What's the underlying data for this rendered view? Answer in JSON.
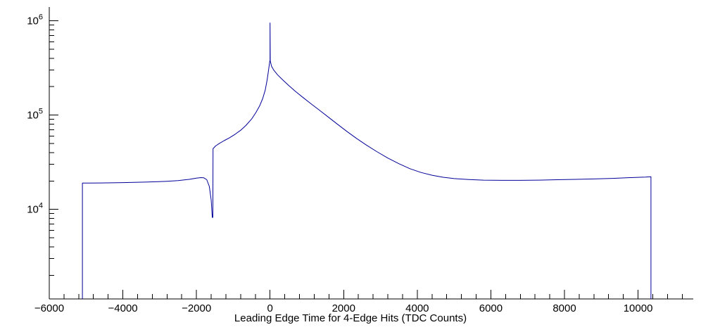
{
  "page": {
    "background": "#ffffff"
  },
  "chart_data": {
    "type": "line",
    "title": "",
    "xlabel": "Leading Edge Time for 4-Edge Hits (TDC Counts)",
    "ylabel": "",
    "x_range": [
      -6000,
      11500
    ],
    "y_range": [
      1120,
      1400000
    ],
    "y_scale": "log",
    "grid": false,
    "legend": "none",
    "line_color": "#000099",
    "axis_color": "#000000",
    "x_ticks": [
      {
        "value": -6000,
        "label": "−6000"
      },
      {
        "value": -4000,
        "label": "−4000"
      },
      {
        "value": -2000,
        "label": "−2000"
      },
      {
        "value": 0,
        "label": "0"
      },
      {
        "value": 2000,
        "label": "2000"
      },
      {
        "value": 4000,
        "label": "4000"
      },
      {
        "value": 6000,
        "label": "6000"
      },
      {
        "value": 8000,
        "label": "8000"
      },
      {
        "value": 10000,
        "label": "10000"
      }
    ],
    "x_minor_step": 400,
    "y_ticks": [
      {
        "value": 10000,
        "base": "10",
        "exp": "4"
      },
      {
        "value": 100000,
        "base": "10",
        "exp": "5"
      },
      {
        "value": 1000000,
        "base": "10",
        "exp": "6"
      }
    ],
    "features": {
      "baseline_level": 20000,
      "left_edge_x": -5100,
      "right_edge_x": 10350,
      "dip_x": -1560,
      "dip_y": 8200,
      "peak_x": 0,
      "peak_y": 380000,
      "spike_top_y": 950000
    },
    "points": [
      [
        -5100,
        1120
      ],
      [
        -5100,
        19000
      ],
      [
        -4900,
        19000
      ],
      [
        -4600,
        19050
      ],
      [
        -4300,
        19100
      ],
      [
        -4000,
        19200
      ],
      [
        -3700,
        19300
      ],
      [
        -3400,
        19450
      ],
      [
        -3100,
        19600
      ],
      [
        -2800,
        19850
      ],
      [
        -2500,
        20200
      ],
      [
        -2200,
        20800
      ],
      [
        -2000,
        21400
      ],
      [
        -1880,
        21700
      ],
      [
        -1800,
        21600
      ],
      [
        -1720,
        20600
      ],
      [
        -1650,
        17500
      ],
      [
        -1600,
        12500
      ],
      [
        -1570,
        8200
      ],
      [
        -1555,
        8200
      ],
      [
        -1550,
        44000
      ],
      [
        -1480,
        47000
      ],
      [
        -1380,
        50000
      ],
      [
        -1250,
        53500
      ],
      [
        -1100,
        57500
      ],
      [
        -950,
        62500
      ],
      [
        -800,
        69000
      ],
      [
        -650,
        78000
      ],
      [
        -500,
        91000
      ],
      [
        -380,
        107000
      ],
      [
        -280,
        126000
      ],
      [
        -200,
        150000
      ],
      [
        -130,
        185000
      ],
      [
        -80,
        235000
      ],
      [
        -40,
        300000
      ],
      [
        -10,
        370000
      ],
      [
        0,
        380000
      ],
      [
        0,
        950000
      ],
      [
        5,
        375000
      ],
      [
        40,
        330000
      ],
      [
        100,
        300000
      ],
      [
        200,
        268000
      ],
      [
        350,
        235000
      ],
      [
        500,
        207000
      ],
      [
        700,
        177000
      ],
      [
        900,
        153000
      ],
      [
        1100,
        133000
      ],
      [
        1350,
        112000
      ],
      [
        1600,
        94000
      ],
      [
        1850,
        79000
      ],
      [
        2100,
        66500
      ],
      [
        2350,
        56500
      ],
      [
        2600,
        48500
      ],
      [
        2900,
        41000
      ],
      [
        3200,
        35000
      ],
      [
        3500,
        30500
      ],
      [
        3800,
        27000
      ],
      [
        4100,
        24600
      ],
      [
        4400,
        23000
      ],
      [
        4700,
        21900
      ],
      [
        5000,
        21200
      ],
      [
        5400,
        20700
      ],
      [
        5800,
        20400
      ],
      [
        6300,
        20300
      ],
      [
        6800,
        20300
      ],
      [
        7300,
        20400
      ],
      [
        7800,
        20600
      ],
      [
        8300,
        20800
      ],
      [
        8800,
        21000
      ],
      [
        9300,
        21300
      ],
      [
        9800,
        21700
      ],
      [
        10200,
        22000
      ],
      [
        10350,
        22200
      ],
      [
        10350,
        1120
      ]
    ]
  }
}
